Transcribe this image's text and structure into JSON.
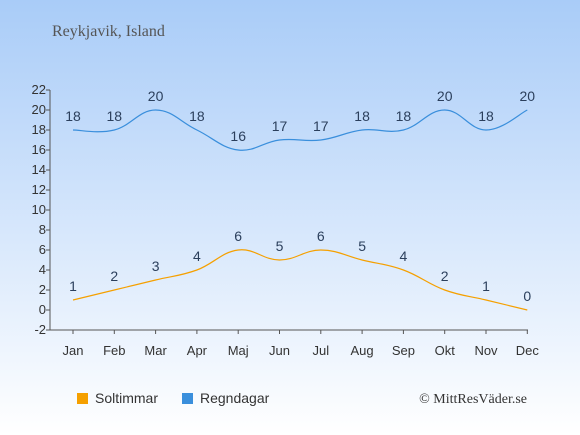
{
  "header": {
    "location": "Reykjavik, Island"
  },
  "footer": {
    "credit": "© MittResVäder.se"
  },
  "colors": {
    "sun": "#f5a000",
    "rain": "#3a8fdc",
    "bg_top": "#a9ccf8",
    "bg_bottom": "#ffffff"
  },
  "chart_data": {
    "type": "line",
    "categories": [
      "Jan",
      "Feb",
      "Mar",
      "Apr",
      "Maj",
      "Jun",
      "Jul",
      "Aug",
      "Sep",
      "Okt",
      "Nov",
      "Dec"
    ],
    "series": [
      {
        "name": "Soltimmar",
        "values": [
          1,
          2,
          3,
          4,
          6,
          5,
          6,
          5,
          4,
          2,
          1,
          0
        ]
      },
      {
        "name": "Regndagar",
        "values": [
          18,
          18,
          20,
          18,
          16,
          17,
          17,
          18,
          18,
          20,
          18,
          20
        ]
      }
    ],
    "title": "",
    "xlabel": "",
    "ylabel": "",
    "ylim": [
      -2,
      22
    ],
    "yticks": [
      -2,
      0,
      2,
      4,
      6,
      8,
      10,
      12,
      14,
      16,
      18,
      20,
      22
    ],
    "grid": false,
    "legend": "bottom-left",
    "data_labels": true
  }
}
